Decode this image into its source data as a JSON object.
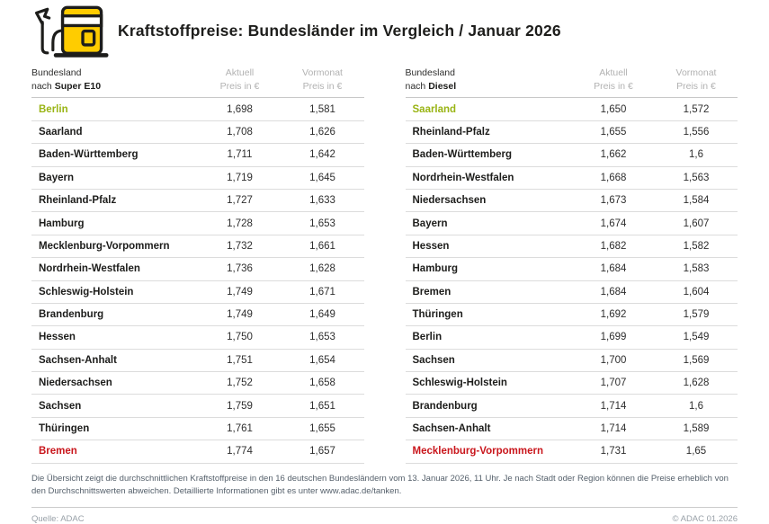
{
  "header": {
    "title": "Kraftstoffpreise: Bundesländer im Vergleich / Januar 2026"
  },
  "colors": {
    "brand_yellow": "#FFCC00",
    "highlight_green": "#99b414",
    "highlight_red": "#c9161c",
    "muted_header_gray": "#b2b2b2"
  },
  "tables": [
    {
      "id": "super-e10",
      "columns": {
        "state_line1": "Bundesland",
        "state_line2_prefix": "nach ",
        "fuel_name": "Super E10",
        "current_line1": "Aktuell",
        "previous_line1": "Vormonat",
        "price_unit": "Preis in €"
      },
      "rows": [
        {
          "state": "Berlin",
          "current": "1,698",
          "previous": "1,581",
          "highlight": "green"
        },
        {
          "state": "Saarland",
          "current": "1,708",
          "previous": "1,626"
        },
        {
          "state": "Baden-Württemberg",
          "current": "1,711",
          "previous": "1,642"
        },
        {
          "state": "Bayern",
          "current": "1,719",
          "previous": "1,645"
        },
        {
          "state": "Rheinland-Pfalz",
          "current": "1,727",
          "previous": "1,633"
        },
        {
          "state": "Hamburg",
          "current": "1,728",
          "previous": "1,653"
        },
        {
          "state": "Mecklenburg-Vorpommern",
          "current": "1,732",
          "previous": "1,661"
        },
        {
          "state": "Nordrhein-Westfalen",
          "current": "1,736",
          "previous": "1,628"
        },
        {
          "state": "Schleswig-Holstein",
          "current": "1,749",
          "previous": "1,671"
        },
        {
          "state": "Brandenburg",
          "current": "1,749",
          "previous": "1,649"
        },
        {
          "state": "Hessen",
          "current": "1,750",
          "previous": "1,653"
        },
        {
          "state": "Sachsen-Anhalt",
          "current": "1,751",
          "previous": "1,654"
        },
        {
          "state": "Niedersachsen",
          "current": "1,752",
          "previous": "1,658"
        },
        {
          "state": "Sachsen",
          "current": "1,759",
          "previous": "1,651"
        },
        {
          "state": "Thüringen",
          "current": "1,761",
          "previous": "1,655"
        },
        {
          "state": "Bremen",
          "current": "1,774",
          "previous": "1,657",
          "highlight": "red"
        }
      ]
    },
    {
      "id": "diesel",
      "columns": {
        "state_line1": "Bundesland",
        "state_line2_prefix": "nach ",
        "fuel_name": "Diesel",
        "current_line1": "Aktuell",
        "previous_line1": "Vormonat",
        "price_unit": "Preis in €"
      },
      "rows": [
        {
          "state": "Saarland",
          "current": "1,650",
          "previous": "1,572",
          "highlight": "green"
        },
        {
          "state": "Rheinland-Pfalz",
          "current": "1,655",
          "previous": "1,556"
        },
        {
          "state": "Baden-Württemberg",
          "current": "1,662",
          "previous": "1,6"
        },
        {
          "state": "Nordrhein-Westfalen",
          "current": "1,668",
          "previous": "1,563"
        },
        {
          "state": "Niedersachsen",
          "current": "1,673",
          "previous": "1,584"
        },
        {
          "state": "Bayern",
          "current": "1,674",
          "previous": "1,607"
        },
        {
          "state": "Hessen",
          "current": "1,682",
          "previous": "1,582"
        },
        {
          "state": "Hamburg",
          "current": "1,684",
          "previous": "1,583"
        },
        {
          "state": "Bremen",
          "current": "1,684",
          "previous": "1,604"
        },
        {
          "state": "Thüringen",
          "current": "1,692",
          "previous": "1,579"
        },
        {
          "state": "Berlin",
          "current": "1,699",
          "previous": "1,549"
        },
        {
          "state": "Sachsen",
          "current": "1,700",
          "previous": "1,569"
        },
        {
          "state": "Schleswig-Holstein",
          "current": "1,707",
          "previous": "1,628"
        },
        {
          "state": "Brandenburg",
          "current": "1,714",
          "previous": "1,6"
        },
        {
          "state": "Sachsen-Anhalt",
          "current": "1,714",
          "previous": "1,589"
        },
        {
          "state": "Mecklenburg-Vorpommern",
          "current": "1,731",
          "previous": "1,65",
          "highlight": "red"
        }
      ]
    }
  ],
  "footnote": {
    "text": "Die Übersicht zeigt die durchschnittlichen Kraftstoffpreise in den 16 deutschen Bundesländern vom 13. Januar 2026, 11 Uhr. Je nach Stadt oder Region können die Preise erheblich von den Durchschnittswerten abweichen. Detaillierte Informationen gibt es unter www.adac.de/tanken."
  },
  "footer": {
    "source": "Quelle: ADAC",
    "copyright": "© ADAC 01.2026"
  },
  "chart_data": [
    {
      "type": "table",
      "title": "Bundesland nach Super E10 — Preis in €",
      "columns": [
        "Bundesland",
        "Aktuell Preis in €",
        "Vormonat Preis in €"
      ],
      "rows": [
        [
          "Berlin",
          1.698,
          1.581
        ],
        [
          "Saarland",
          1.708,
          1.626
        ],
        [
          "Baden-Württemberg",
          1.711,
          1.642
        ],
        [
          "Bayern",
          1.719,
          1.645
        ],
        [
          "Rheinland-Pfalz",
          1.727,
          1.633
        ],
        [
          "Hamburg",
          1.728,
          1.653
        ],
        [
          "Mecklenburg-Vorpommern",
          1.732,
          1.661
        ],
        [
          "Nordrhein-Westfalen",
          1.736,
          1.628
        ],
        [
          "Schleswig-Holstein",
          1.749,
          1.671
        ],
        [
          "Brandenburg",
          1.749,
          1.649
        ],
        [
          "Hessen",
          1.75,
          1.653
        ],
        [
          "Sachsen-Anhalt",
          1.751,
          1.654
        ],
        [
          "Niedersachsen",
          1.752,
          1.658
        ],
        [
          "Sachsen",
          1.759,
          1.651
        ],
        [
          "Thüringen",
          1.761,
          1.655
        ],
        [
          "Bremen",
          1.774,
          1.657
        ]
      ],
      "annotations": {
        "cheapest_green": "Berlin",
        "most_expensive_red": "Bremen"
      }
    },
    {
      "type": "table",
      "title": "Bundesland nach Diesel — Preis in €",
      "columns": [
        "Bundesland",
        "Aktuell Preis in €",
        "Vormonat Preis in €"
      ],
      "rows": [
        [
          "Saarland",
          1.65,
          1.572
        ],
        [
          "Rheinland-Pfalz",
          1.655,
          1.556
        ],
        [
          "Baden-Württemberg",
          1.662,
          1.6
        ],
        [
          "Nordrhein-Westfalen",
          1.668,
          1.563
        ],
        [
          "Niedersachsen",
          1.673,
          1.584
        ],
        [
          "Bayern",
          1.674,
          1.607
        ],
        [
          "Hessen",
          1.682,
          1.582
        ],
        [
          "Hamburg",
          1.684,
          1.583
        ],
        [
          "Bremen",
          1.684,
          1.604
        ],
        [
          "Thüringen",
          1.692,
          1.579
        ],
        [
          "Berlin",
          1.699,
          1.549
        ],
        [
          "Sachsen",
          1.7,
          1.569
        ],
        [
          "Schleswig-Holstein",
          1.707,
          1.628
        ],
        [
          "Brandenburg",
          1.714,
          1.6
        ],
        [
          "Sachsen-Anhalt",
          1.714,
          1.589
        ],
        [
          "Mecklenburg-Vorpommern",
          1.731,
          1.65
        ]
      ],
      "annotations": {
        "cheapest_green": "Saarland",
        "most_expensive_red": "Mecklenburg-Vorpommern"
      }
    }
  ]
}
